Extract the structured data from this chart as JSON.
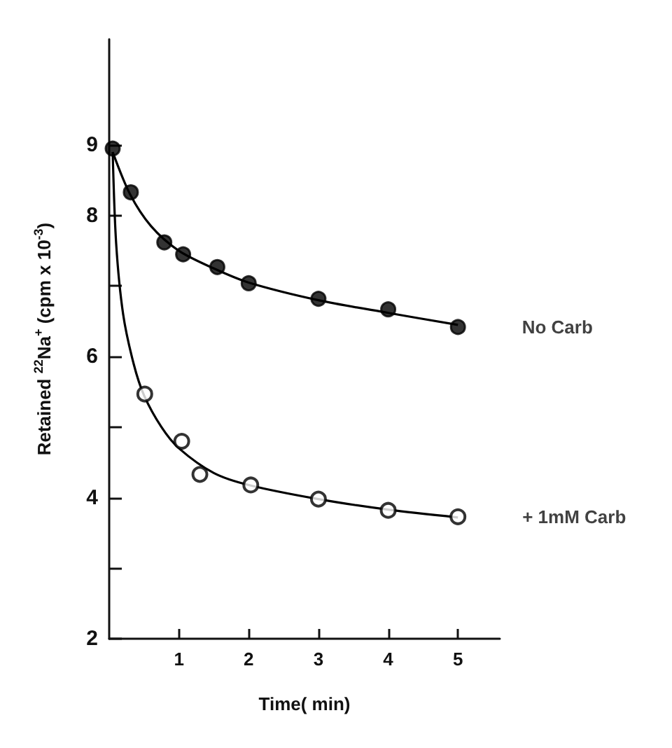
{
  "chart_data": {
    "type": "scatter",
    "xlabel": "Time( min)",
    "ylabel": "Retained $^{22}$Na$^{+}$ (cpm x 10$^{-3}$)",
    "xlim": [
      0,
      5.6
    ],
    "xticks": [
      1,
      2,
      3,
      4,
      5
    ],
    "ylim": [
      2,
      10.5
    ],
    "yticks": [
      2,
      {
        "value": 3,
        "label": null
      },
      4,
      {
        "value": 5,
        "label": null
      },
      6,
      {
        "value": 7,
        "label": null
      },
      8,
      9
    ],
    "grid": false,
    "legend": false,
    "series": [
      {
        "name": "No Carb",
        "color": "#000000",
        "marker": "circle",
        "x": [
          0.05,
          0.31,
          0.79,
          1.06,
          1.55,
          2.0,
          3.0,
          4.0,
          5.0
        ],
        "values": [
          8.95,
          8.33,
          7.62,
          7.45,
          7.27,
          7.04,
          6.82,
          6.67,
          6.42
        ]
      },
      {
        "name": "+ 1mM Carb",
        "color": "#000000",
        "marker": "emptyCircle",
        "x": [
          0.51,
          1.04,
          1.3,
          2.03,
          3.0,
          4.0,
          5.0
        ],
        "values": [
          5.47,
          4.8,
          4.33,
          4.18,
          3.98,
          3.82,
          3.73
        ]
      },
      {
        "type": "line",
        "color": "#000000",
        "x": [
          0.05,
          0.3,
          0.6,
          1,
          1.5,
          2,
          3,
          4,
          5
        ],
        "values": [
          8.9,
          8.3,
          7.85,
          7.5,
          7.25,
          7.05,
          6.8,
          6.62,
          6.45
        ]
      },
      {
        "type": "line",
        "color": "#000000",
        "x": [
          0.05,
          0.1,
          0.2,
          0.35,
          0.5,
          0.75,
          1,
          1.5,
          2,
          3,
          4,
          5
        ],
        "values": [
          8.9,
          7.6,
          6.6,
          5.9,
          5.45,
          5.0,
          4.7,
          4.35,
          4.18,
          3.98,
          3.83,
          3.72
        ]
      }
    ]
  }
}
